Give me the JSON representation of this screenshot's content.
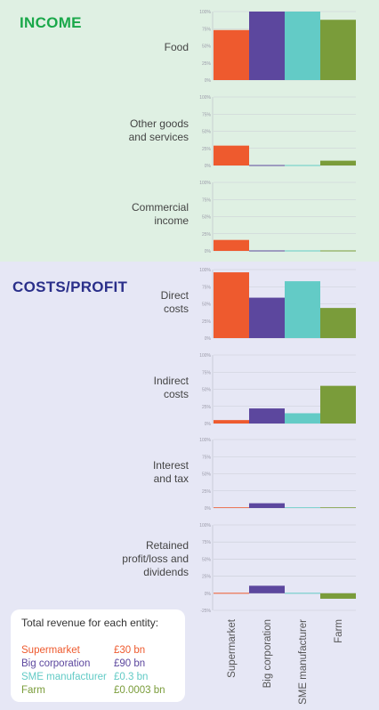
{
  "sections": {
    "income": "INCOME",
    "costs": "COSTS/PROFIT"
  },
  "legend": {
    "title": "Total revenue for each entity:",
    "entries": [
      {
        "name": "Supermarket",
        "value": "£30 bn",
        "color": "#ee5a2e"
      },
      {
        "name": "Big corporation",
        "value": "£90 bn",
        "color": "#5c479e"
      },
      {
        "name": "SME manufacturer",
        "value": "£0.3 bn",
        "color": "#63cbc6"
      },
      {
        "name": "Farm",
        "value": "£0.0003 bn",
        "color": "#7a9c3a"
      }
    ]
  },
  "chart_data": {
    "type": "bar",
    "categories": [
      "Supermarket",
      "Big corporation",
      "SME manufacturer",
      "Farm"
    ],
    "colors": [
      "#ee5a2e",
      "#5c479e",
      "#63cbc6",
      "#7a9c3a"
    ],
    "unit": "%",
    "panels": [
      {
        "label": "Food",
        "ylim": [
          0,
          100
        ],
        "ticks": [
          "100%",
          "75%",
          "50%",
          "25%",
          "0%"
        ],
        "values": [
          73,
          100,
          100,
          88
        ]
      },
      {
        "label": "Other goods\nand services",
        "ylim": [
          0,
          100
        ],
        "ticks": [
          "100%",
          "75%",
          "50%",
          "25%",
          "0%"
        ],
        "values": [
          29,
          0,
          0,
          7
        ]
      },
      {
        "label": "Commercial\nincome",
        "ylim": [
          0,
          100
        ],
        "ticks": [
          "100%",
          "75%",
          "50%",
          "25%",
          "0%"
        ],
        "values": [
          16,
          0,
          0,
          0
        ]
      },
      {
        "label": "Direct\ncosts",
        "ylim": [
          0,
          100
        ],
        "ticks": [
          "100%",
          "75%",
          "50%",
          "25%",
          "0%"
        ],
        "values": [
          96,
          59,
          83,
          44
        ]
      },
      {
        "label": "Indirect\ncosts",
        "ylim": [
          0,
          100
        ],
        "ticks": [
          "100%",
          "75%",
          "50%",
          "25%",
          "0%"
        ],
        "values": [
          5,
          22,
          15,
          55
        ]
      },
      {
        "label": "Interest\nand tax",
        "ylim": [
          0,
          100
        ],
        "ticks": [
          "100%",
          "75%",
          "50%",
          "25%",
          "0%"
        ],
        "values": [
          1,
          7,
          1,
          1
        ]
      },
      {
        "label": "Retained\nprofit/loss and\ndividends",
        "ylim": [
          -25,
          100
        ],
        "ticks": [
          "100%",
          "75%",
          "50%",
          "25%",
          "0%",
          "-25%"
        ],
        "values": [
          0,
          11,
          0,
          -8
        ]
      }
    ]
  }
}
